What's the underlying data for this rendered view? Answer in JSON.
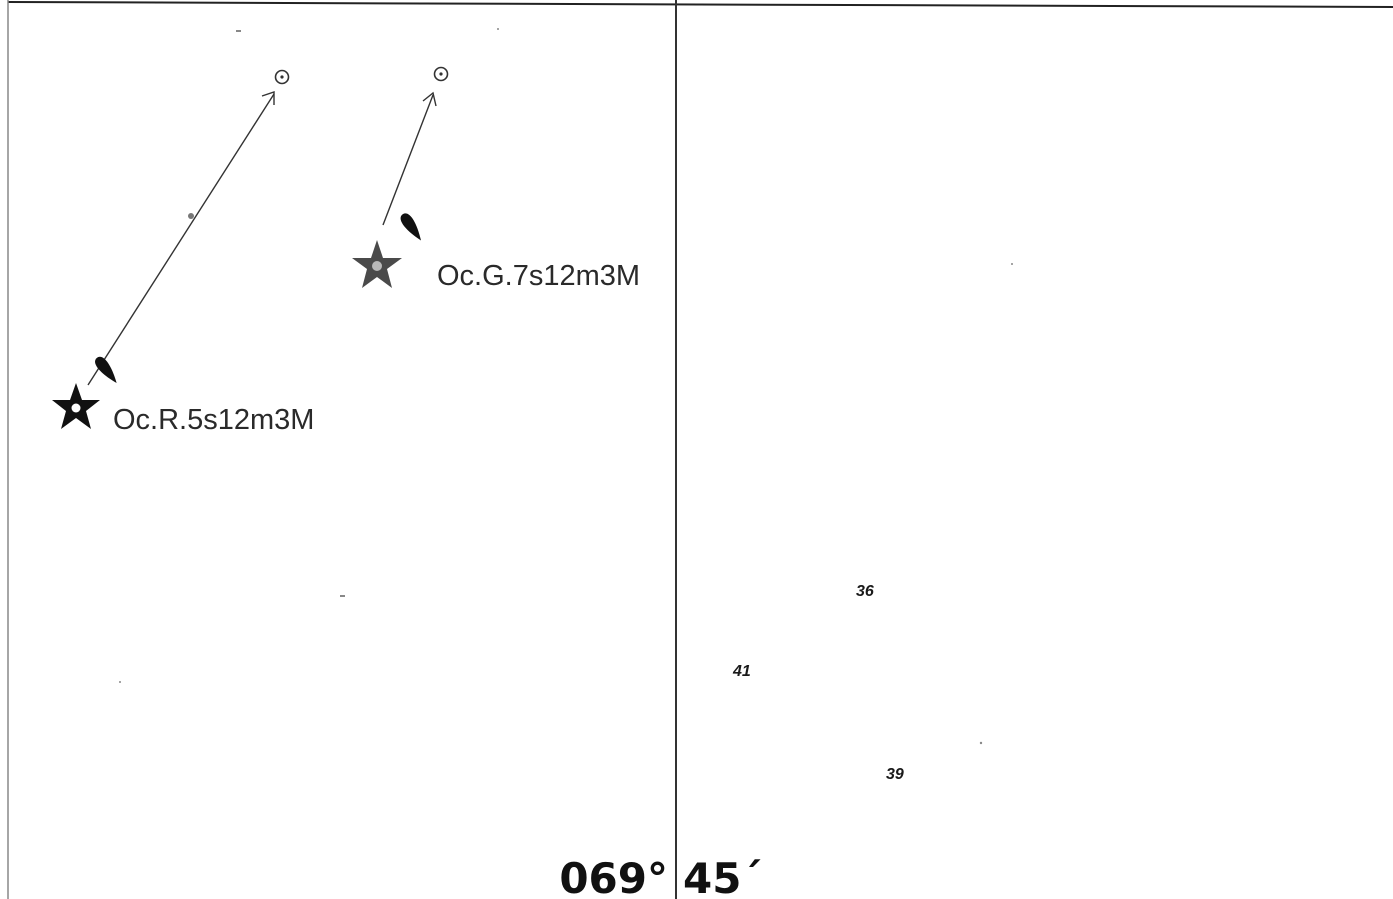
{
  "lights": [
    {
      "characteristic": "Oc.R.5s12m3M",
      "colour": "red",
      "symbol": "light-star-icon",
      "flare": "light-flare-icon"
    },
    {
      "characteristic": "Oc.G.7s12m3M",
      "colour": "green",
      "symbol": "light-star-icon",
      "flare": "light-flare-icon"
    }
  ],
  "leading_line_markers": [
    "circle-dot-icon",
    "circle-dot-icon"
  ],
  "soundings": [
    "36",
    "41",
    "39"
  ],
  "meridian": {
    "degrees": "069°",
    "minutes": "45´"
  },
  "colors": {
    "ink": "#111111",
    "line": "#333333",
    "background": "#ffffff"
  }
}
